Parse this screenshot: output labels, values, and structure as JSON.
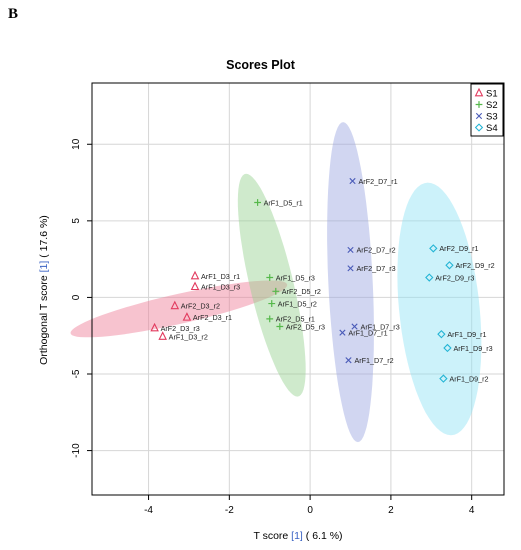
{
  "panel_letter": "B",
  "chart_data": {
    "type": "scatter",
    "title": "Scores Plot",
    "xlabel": {
      "prefix": "T score ",
      "highlight": "[1]",
      "suffix": " ( 6.1 %)"
    },
    "ylabel": {
      "prefix": "Orthogonal T score ",
      "highlight": "[1]",
      "suffix": " ( 17.6 %)"
    },
    "xlim": [
      -5.4,
      4.8
    ],
    "ylim": [
      -12.9,
      14.0
    ],
    "xticks": [
      -4,
      -2,
      0,
      2,
      4
    ],
    "yticks": [
      -10,
      -5,
      0,
      5,
      10
    ],
    "tick_labels_x": [
      "-4",
      "-2",
      "0",
      "2",
      "4"
    ],
    "tick_labels_y": [
      "-10",
      "-5",
      "0",
      "5",
      "10"
    ],
    "grid": true,
    "legend_position": "top-right",
    "series": [
      {
        "name": "S1",
        "marker": "triangle",
        "color": "#e23a5e",
        "ellipse_color": "#ee7a95",
        "points": [
          {
            "label": "ArF1_D3_r1",
            "x": -2.85,
            "y": 1.4
          },
          {
            "label": "ArF1_D3_r3",
            "x": -2.85,
            "y": 0.7
          },
          {
            "label": "ArF2_D3_r2",
            "x": -3.35,
            "y": -0.55
          },
          {
            "label": "ArF2_D3_r1",
            "x": -3.05,
            "y": -1.3
          },
          {
            "label": "ArF2_D3_r3",
            "x": -3.85,
            "y": -2.0
          },
          {
            "label": "ArF1_D3_r2",
            "x": -3.65,
            "y": -2.55
          }
        ],
        "ellipse": {
          "cx": -3.25,
          "cy": -0.75,
          "rx": 3.15,
          "ry": 0.85,
          "angle_deg": 33
        }
      },
      {
        "name": "S2",
        "marker": "plus",
        "color": "#55b84a",
        "ellipse_color": "#94d18e",
        "points": [
          {
            "label": "ArF1_D5_r1",
            "x": -1.3,
            "y": 6.2
          },
          {
            "label": "ArF1_D5_r3",
            "x": -1.0,
            "y": 1.3
          },
          {
            "label": "ArF2_D5_r2",
            "x": -0.85,
            "y": 0.4
          },
          {
            "label": "ArF1_D5_r2",
            "x": -0.95,
            "y": -0.4
          },
          {
            "label": "ArF2_D5_r1",
            "x": -1.0,
            "y": -1.4
          },
          {
            "label": "ArF2_D5_r3",
            "x": -0.75,
            "y": -1.9
          }
        ],
        "ellipse": {
          "cx": -0.95,
          "cy": 0.8,
          "rx": 0.55,
          "ry": 7.3,
          "angle_deg": 5
        }
      },
      {
        "name": "S3",
        "marker": "cross",
        "color": "#4a5bb8",
        "ellipse_color": "#9aa3df",
        "points": [
          {
            "label": "ArF2_D7_r1",
            "x": 1.05,
            "y": 7.6
          },
          {
            "label": "ArF2_D7_r2",
            "x": 1.0,
            "y": 3.1
          },
          {
            "label": "ArF2_D7_r3",
            "x": 1.0,
            "y": 1.9
          },
          {
            "label": "ArF1_D7_r3",
            "x": 1.1,
            "y": -1.9
          },
          {
            "label": "ArF1_D7_r1",
            "x": 0.8,
            "y": -2.3
          },
          {
            "label": "ArF1_D7_r2",
            "x": 0.95,
            "y": -4.1
          }
        ],
        "ellipse": {
          "cx": 1.0,
          "cy": 1.0,
          "rx": 0.55,
          "ry": 10.45,
          "angle_deg": 1
        }
      },
      {
        "name": "S4",
        "marker": "diamond",
        "color": "#25b5d5",
        "ellipse_color": "#8ee3f3",
        "points": [
          {
            "label": "ArF2_D9_r1",
            "x": 3.05,
            "y": 3.2
          },
          {
            "label": "ArF2_D9_r2",
            "x": 3.45,
            "y": 2.1
          },
          {
            "label": "ArF2_D9_r3",
            "x": 2.95,
            "y": 1.3
          },
          {
            "label": "ArF1_D9_r1",
            "x": 3.25,
            "y": -2.4
          },
          {
            "label": "ArF1_D9_r3",
            "x": 3.4,
            "y": -3.3
          },
          {
            "label": "ArF1_D9_r2",
            "x": 3.3,
            "y": -5.3
          }
        ],
        "ellipse": {
          "cx": 3.2,
          "cy": -0.75,
          "rx": 1.0,
          "ry": 8.25,
          "angle_deg": 2
        }
      }
    ]
  }
}
